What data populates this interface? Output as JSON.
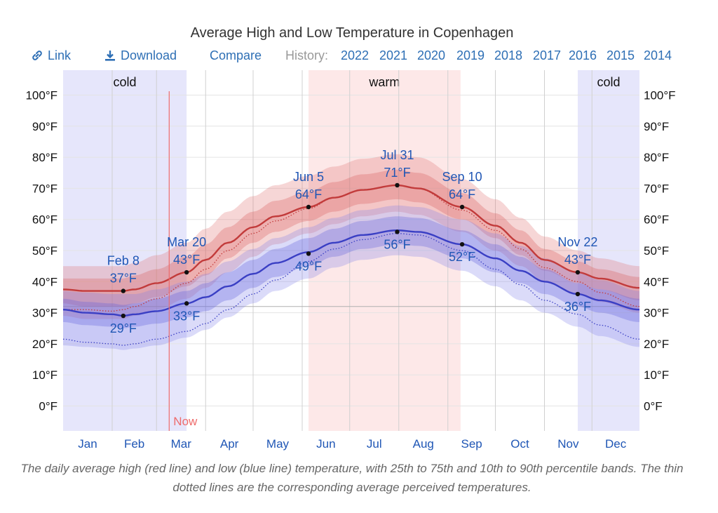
{
  "toolbar": {
    "link_label": "Link",
    "download_label": "Download",
    "compare_label": "Compare",
    "history_label": "History:",
    "history_years": [
      "2022",
      "2021",
      "2020",
      "2019",
      "2018",
      "2017",
      "2016",
      "2015",
      "2014"
    ]
  },
  "caption": "The daily average high (red line) and low (blue line) temperature, with 25th to 75th and 10th to 90th percentile bands. The thin dotted lines are the corresponding average perceived temperatures.",
  "colors": {
    "high_line": "#c23b3b",
    "low_line": "#3a3fc4",
    "warm_band": "#fde8e8",
    "cold_band": "#e6e6fb",
    "link_blue": "#2e6fb5",
    "now_line": "#ee6b6b"
  },
  "chart_data": {
    "type": "line",
    "title": "Average High and Low Temperature in Copenhagen",
    "y_unit": "°F",
    "ylim": [
      -8,
      108
    ],
    "y_ticks": [
      0,
      10,
      20,
      30,
      40,
      50,
      60,
      70,
      80,
      90,
      100
    ],
    "y_tick_labels": [
      "0°F",
      "10°F",
      "20°F",
      "30°F",
      "40°F",
      "50°F",
      "60°F",
      "70°F",
      "80°F",
      "90°F",
      "100°F"
    ],
    "month_labels": [
      "Jan",
      "Feb",
      "Mar",
      "Apr",
      "May",
      "Jun",
      "Jul",
      "Aug",
      "Sep",
      "Oct",
      "Nov",
      "Dec"
    ],
    "x_unit": "day of year",
    "xlim": [
      1,
      365
    ],
    "freezing_line": 32,
    "seasons": [
      {
        "label": "cold",
        "start_day": 1,
        "end_day": 79
      },
      {
        "label": "warm",
        "start_day": 156,
        "end_day": 252
      },
      {
        "label": "cold",
        "start_day": 326,
        "end_day": 365
      }
    ],
    "now": {
      "label": "Now",
      "day": 68
    },
    "series": [
      {
        "name": "high",
        "x": [
          1,
          15,
          32,
          39,
          46,
          60,
          79,
          91,
          105,
          121,
          135,
          156,
          172,
          190,
          212,
          225,
          253,
          274,
          290,
          305,
          326,
          340,
          365
        ],
        "values": [
          37.5,
          37,
          37,
          37,
          37.5,
          39.5,
          43,
          47,
          52.5,
          57.5,
          61,
          64,
          67,
          69.5,
          71,
          70,
          64,
          58,
          52.5,
          47,
          43,
          41,
          38
        ],
        "p25": [
          33,
          32,
          32,
          32,
          33,
          35,
          38.5,
          42,
          47.5,
          52.5,
          56,
          59.5,
          62.5,
          65,
          66.5,
          65.5,
          60,
          54,
          48.5,
          43.5,
          39.5,
          37.5,
          34
        ],
        "p75": [
          41,
          41,
          41,
          41,
          42,
          44,
          48,
          52,
          57.5,
          62.5,
          66,
          69,
          72,
          74.5,
          76,
          75,
          68.5,
          62,
          56.5,
          50.5,
          46.5,
          44,
          41.5
        ],
        "p10": [
          29,
          28,
          28,
          28,
          29,
          31,
          34.5,
          38,
          43,
          48,
          52,
          55.5,
          58.5,
          61,
          62.5,
          61.5,
          56,
          50,
          45,
          40,
          36,
          33.5,
          30
        ],
        "p90": [
          45,
          45,
          45,
          45,
          46,
          48.5,
          52.5,
          57,
          62.5,
          67.5,
          71,
          74,
          77,
          79.5,
          81,
          80,
          73,
          66.5,
          60.5,
          54.5,
          50,
          47.5,
          45
        ],
        "perceived": [
          31,
          31,
          30.5,
          31,
          32,
          34.5,
          39.5,
          44,
          50,
          55.5,
          59.5,
          63.5,
          67,
          69.5,
          71,
          70,
          63,
          56.5,
          50.5,
          44.5,
          40,
          36.5,
          32
        ]
      },
      {
        "name": "low",
        "x": [
          1,
          15,
          32,
          39,
          46,
          60,
          79,
          91,
          105,
          121,
          135,
          156,
          172,
          190,
          212,
          225,
          253,
          274,
          290,
          305,
          326,
          340,
          365
        ],
        "values": [
          31,
          30,
          29.5,
          29,
          29.5,
          30.5,
          33,
          35,
          38.5,
          42.5,
          46,
          49.5,
          52.5,
          55,
          56.5,
          56,
          52,
          47.5,
          43.5,
          40,
          36,
          34,
          31
        ],
        "p25": [
          27,
          26,
          25.5,
          25,
          25.5,
          26.5,
          28.5,
          30.5,
          34,
          38,
          41.5,
          45,
          48,
          50.5,
          52,
          51.5,
          47.5,
          43,
          39.5,
          36,
          32,
          30,
          27
        ],
        "p75": [
          34.5,
          33.5,
          33,
          32.5,
          33,
          34.5,
          37,
          39.5,
          43,
          47,
          50.5,
          54,
          57,
          59.5,
          61,
          60.5,
          56.5,
          52,
          48,
          44,
          39.5,
          37.5,
          34.5
        ],
        "p10": [
          19.5,
          19,
          18.5,
          18,
          18.5,
          19.5,
          22,
          24.5,
          28.5,
          33,
          37,
          41,
          44.5,
          47,
          48.5,
          48,
          43.5,
          38.5,
          34,
          30,
          25.5,
          22.5,
          19
        ],
        "p90": [
          37,
          36.5,
          36,
          36,
          36,
          37.5,
          40,
          42.5,
          46.5,
          50.5,
          54,
          57.5,
          60.5,
          63,
          64.5,
          64,
          60,
          55.5,
          51.5,
          47.5,
          43,
          40.5,
          37
        ],
        "perceived": [
          21.5,
          20.5,
          20,
          19.5,
          20,
          21.5,
          24,
          26.5,
          31,
          36,
          40.5,
          46.5,
          50.5,
          53.5,
          55.5,
          55,
          50,
          44,
          39,
          34,
          29.5,
          26,
          21.5
        ]
      }
    ],
    "annotations": [
      {
        "series": "high",
        "date": "Feb 8",
        "day": 39,
        "value": 37,
        "label": "37°F",
        "position": "above"
      },
      {
        "series": "high",
        "date": "Mar 20",
        "day": 79,
        "value": 43,
        "label": "43°F",
        "position": "above"
      },
      {
        "series": "high",
        "date": "Jun 5",
        "day": 156,
        "value": 64,
        "label": "64°F",
        "position": "above"
      },
      {
        "series": "high",
        "date": "Jul 31",
        "day": 212,
        "value": 71,
        "label": "71°F",
        "position": "above"
      },
      {
        "series": "high",
        "date": "Sep 10",
        "day": 253,
        "value": 64,
        "label": "64°F",
        "position": "above"
      },
      {
        "series": "high",
        "date": "Nov 22",
        "day": 326,
        "value": 43,
        "label": "43°F",
        "position": "above"
      },
      {
        "series": "low",
        "day": 39,
        "value": 29,
        "label": "29°F",
        "position": "below"
      },
      {
        "series": "low",
        "day": 79,
        "value": 33,
        "label": "33°F",
        "position": "below"
      },
      {
        "series": "low",
        "day": 156,
        "value": 49,
        "label": "49°F",
        "position": "below"
      },
      {
        "series": "low",
        "day": 212,
        "value": 56,
        "label": "56°F",
        "position": "below"
      },
      {
        "series": "low",
        "day": 253,
        "value": 52,
        "label": "52°F",
        "position": "below"
      },
      {
        "series": "low",
        "day": 326,
        "value": 36,
        "label": "36°F",
        "position": "below"
      }
    ],
    "grid": true
  }
}
